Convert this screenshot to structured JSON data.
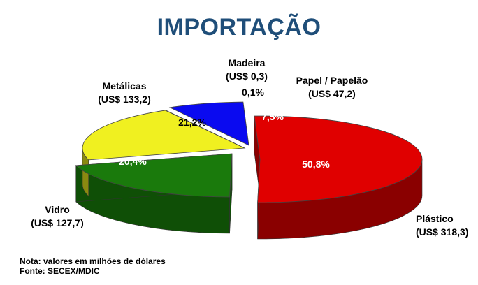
{
  "chart_data": {
    "type": "pie",
    "title": "IMPORTAÇÃO",
    "slices": [
      {
        "name": "Plástico",
        "value": 318.3,
        "value_label": "(US$ 318,3)",
        "pct": 50.8,
        "pct_label": "50,8%",
        "color": "#e00000",
        "side_color": "#8a0000",
        "exploded": true
      },
      {
        "name": "Vidro",
        "value": 127.7,
        "value_label": "(US$ 127,7)",
        "pct": 20.4,
        "pct_label": "20,4%",
        "color": "#1a7a0c",
        "side_color": "#0f4f06",
        "exploded": true
      },
      {
        "name": "Metálicas",
        "value": 133.2,
        "value_label": "(US$ 133,2)",
        "pct": 21.2,
        "pct_label": "21,2%",
        "color": "#f0f020",
        "side_color": "#8a8a10",
        "exploded": false
      },
      {
        "name": "Madeira",
        "value": 0.3,
        "value_label": "(US$ 0,3)",
        "pct": 0.1,
        "pct_label": "0,1%",
        "color": "#ffffff",
        "side_color": "#cfcfcf",
        "exploded": false
      },
      {
        "name": "Papel / Papelão",
        "value": 47.2,
        "value_label": "(US$ 47,2)",
        "pct": 7.5,
        "pct_label": "7,5%",
        "color": "#0a0af0",
        "side_color": "#05057a",
        "exploded": false
      }
    ],
    "grid": false,
    "legend": "none"
  },
  "notes": {
    "nota": "Nota: valores em milhões de dólares",
    "fonte": "Fonte: SECEX/MDIC"
  }
}
